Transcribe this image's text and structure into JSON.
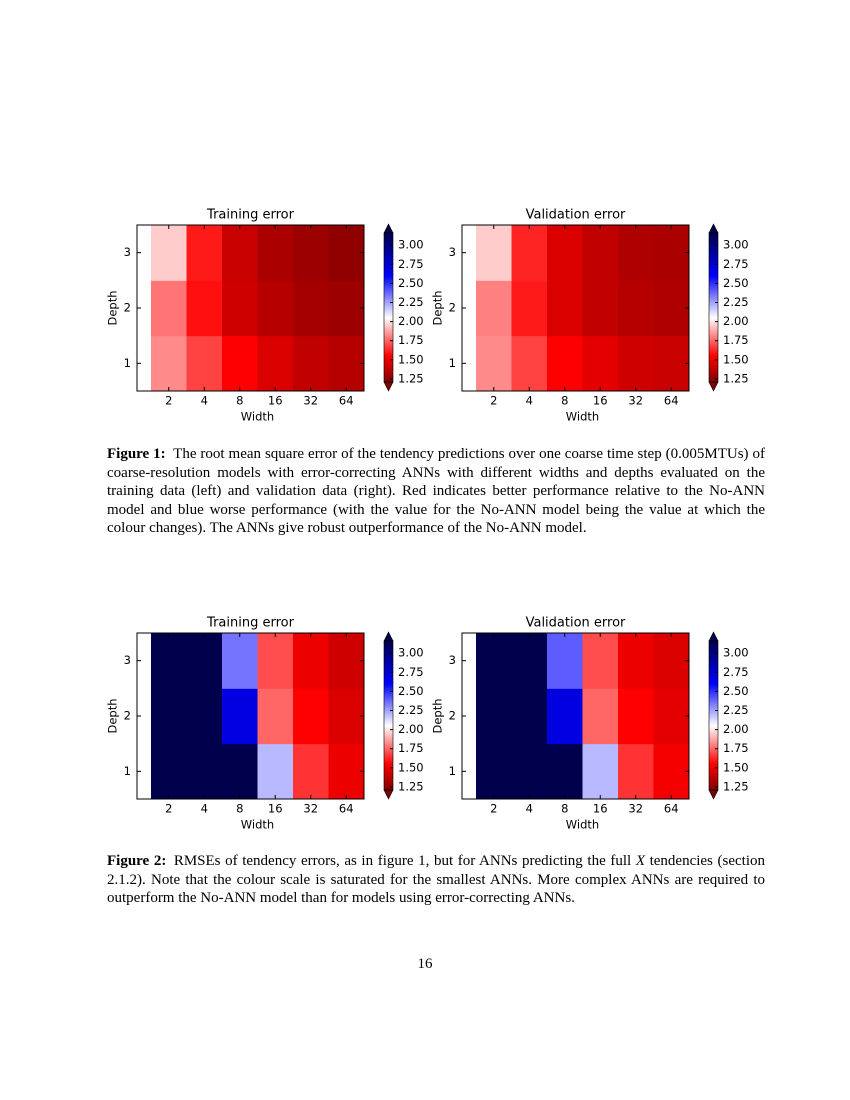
{
  "chart_data": [
    {
      "type": "heatmap",
      "title": "Training error",
      "x_label": "Width",
      "y_label": "Depth",
      "x_categories": [
        2,
        4,
        8,
        16,
        32,
        64
      ],
      "y_categories": [
        1,
        2,
        3
      ],
      "values": [
        [
          1.82,
          1.68,
          1.55,
          1.45,
          1.38,
          1.35
        ],
        [
          1.78,
          1.58,
          1.42,
          1.35,
          1.3,
          1.28
        ],
        [
          1.95,
          1.6,
          1.4,
          1.32,
          1.28,
          1.25
        ]
      ],
      "color_stops": [
        {
          "value": 1.2,
          "color": "#7f0000"
        },
        {
          "value": 1.55,
          "color": "#ff0000"
        },
        {
          "value": 2.05,
          "color": "#ffffff"
        },
        {
          "value": 2.6,
          "color": "#0000ff"
        },
        {
          "value": 3.2,
          "color": "#00004c"
        }
      ],
      "colorbar": {
        "lim": [
          1.21,
          3.16
        ],
        "extend": "both",
        "ticks": [
          1.25,
          {
            "value": 1.5,
            "label": "1.50"
          },
          1.75,
          {
            "value": 2,
            "label": "2.00"
          },
          2.25,
          {
            "value": 2.5,
            "label": "2.50"
          },
          2.75,
          {
            "value": 3,
            "label": "3.00"
          }
        ]
      }
    },
    {
      "type": "heatmap",
      "title": "Validation error",
      "x_label": "Width",
      "y_label": "Depth",
      "x_categories": [
        2,
        4,
        8,
        16,
        32,
        64
      ],
      "y_categories": [
        1,
        2,
        3
      ],
      "values": [
        [
          1.82,
          1.68,
          1.55,
          1.48,
          1.42,
          1.4
        ],
        [
          1.8,
          1.6,
          1.45,
          1.38,
          1.35,
          1.33
        ],
        [
          1.95,
          1.62,
          1.45,
          1.38,
          1.33,
          1.32
        ]
      ],
      "color_stops": [
        {
          "value": 1.2,
          "color": "#7f0000"
        },
        {
          "value": 1.55,
          "color": "#ff0000"
        },
        {
          "value": 2.05,
          "color": "#ffffff"
        },
        {
          "value": 2.6,
          "color": "#0000ff"
        },
        {
          "value": 3.2,
          "color": "#00004c"
        }
      ],
      "colorbar": {
        "lim": [
          1.21,
          3.16
        ],
        "extend": "both",
        "ticks": [
          1.25,
          {
            "value": 1.5,
            "label": "1.50"
          },
          1.75,
          {
            "value": 2,
            "label": "2.00"
          },
          2.25,
          {
            "value": 2.5,
            "label": "2.50"
          },
          2.75,
          {
            "value": 3,
            "label": "3.00"
          }
        ]
      }
    },
    {
      "type": "heatmap",
      "title": "Training error",
      "x_label": "Width",
      "y_label": "Depth",
      "x_categories": [
        2,
        4,
        8,
        16,
        32,
        64
      ],
      "y_categories": [
        1,
        2,
        3
      ],
      "values": [
        [
          3.3,
          3.3,
          3.3,
          2.2,
          1.65,
          1.5
        ],
        [
          3.3,
          3.3,
          2.7,
          1.75,
          1.55,
          1.45
        ],
        [
          3.3,
          3.3,
          2.35,
          1.7,
          1.5,
          1.42
        ]
      ],
      "color_stops": [
        {
          "value": 1.2,
          "color": "#7f0000"
        },
        {
          "value": 1.55,
          "color": "#ff0000"
        },
        {
          "value": 2.05,
          "color": "#ffffff"
        },
        {
          "value": 2.6,
          "color": "#0000ff"
        },
        {
          "value": 3.2,
          "color": "#00004c"
        }
      ],
      "colorbar": {
        "lim": [
          1.21,
          3.16
        ],
        "extend": "both",
        "ticks": [
          1.25,
          {
            "value": 1.5,
            "label": "1.50"
          },
          1.75,
          {
            "value": 2,
            "label": "2.00"
          },
          2.25,
          {
            "value": 2.5,
            "label": "2.50"
          },
          2.75,
          {
            "value": 3,
            "label": "3.00"
          }
        ]
      }
    },
    {
      "type": "heatmap",
      "title": "Validation error",
      "x_label": "Width",
      "y_label": "Depth",
      "x_categories": [
        2,
        4,
        8,
        16,
        32,
        64
      ],
      "y_categories": [
        1,
        2,
        3
      ],
      "values": [
        [
          3.3,
          3.3,
          3.3,
          2.2,
          1.65,
          1.52
        ],
        [
          3.3,
          3.3,
          2.7,
          1.75,
          1.55,
          1.48
        ],
        [
          3.3,
          3.3,
          2.4,
          1.7,
          1.5,
          1.45
        ]
      ],
      "color_stops": [
        {
          "value": 1.2,
          "color": "#7f0000"
        },
        {
          "value": 1.55,
          "color": "#ff0000"
        },
        {
          "value": 2.05,
          "color": "#ffffff"
        },
        {
          "value": 2.6,
          "color": "#0000ff"
        },
        {
          "value": 3.2,
          "color": "#00004c"
        }
      ],
      "colorbar": {
        "lim": [
          1.21,
          3.16
        ],
        "extend": "both",
        "ticks": [
          1.25,
          {
            "value": 1.5,
            "label": "1.50"
          },
          1.75,
          {
            "value": 2,
            "label": "2.00"
          },
          2.25,
          {
            "value": 2.5,
            "label": "2.50"
          },
          2.75,
          {
            "value": 3,
            "label": "3.00"
          }
        ]
      }
    }
  ],
  "captions": [
    {
      "label": "Figure 1:",
      "parts": [
        {
          "text": "The root mean square error of the tendency predictions over one coarse time step (0.005MTUs) of coarse-resolution models with error-correcting ANNs with different widths and depths evaluated on the training data (left) and validation data (right). Red indicates better performance relative to the No-ANN model and blue worse performance (with the value for the No-ANN model being the value at which the colour changes). The ANNs give robust outperformance of the No-ANN model."
        }
      ]
    },
    {
      "label": "Figure 2:",
      "parts": [
        {
          "text": "RMSEs of tendency errors, as in figure 1, but for ANNs predicting the full "
        },
        {
          "text": "X",
          "italic": true
        },
        {
          "text": " tendencies (section 2.1.2). Note that the colour scale is saturated for the smallest ANNs. More complex ANNs are required to outperform the No-ANN model than for models using error-correcting ANNs."
        }
      ]
    }
  ],
  "page_number": "16"
}
